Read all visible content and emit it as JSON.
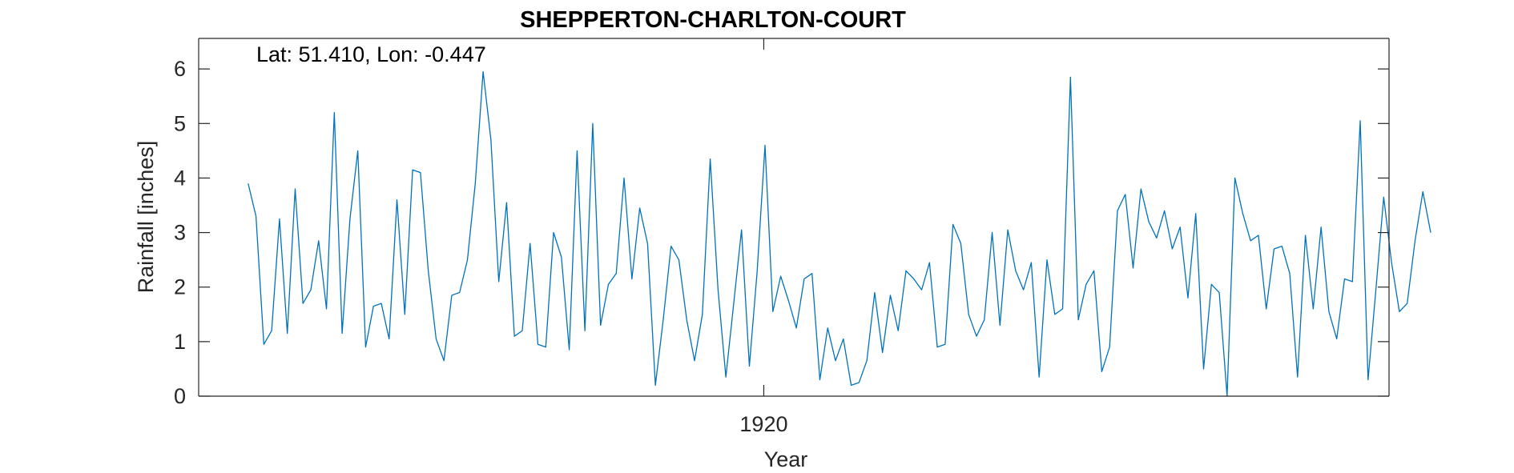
{
  "chart_data": {
    "type": "line",
    "title": "SHEPPERTON-CHARLTON-COURT",
    "annotation": "Lat: 51.410, Lon: -0.447",
    "xlabel": "Year",
    "ylabel": "Rainfall [inches]",
    "xlim": [
      1901.96,
      1939.96
    ],
    "ylim": [
      0,
      6.56
    ],
    "x_ticks": [
      1920
    ],
    "x_tick_labels": [
      "1920"
    ],
    "y_ticks": [
      0,
      1,
      2,
      3,
      4,
      5,
      6
    ],
    "y_tick_labels": [
      "0",
      "1",
      "2",
      "3",
      "4",
      "5",
      "6"
    ],
    "x_start": 1903.54,
    "x_step": 0.25,
    "grid": false,
    "series": [
      {
        "color": "#0072BD",
        "values": [
          3.9,
          3.3,
          0.95,
          1.2,
          3.25,
          1.15,
          3.8,
          1.7,
          1.95,
          2.85,
          1.6,
          5.2,
          1.15,
          3.25,
          4.5,
          0.9,
          1.65,
          1.7,
          1.05,
          3.6,
          1.5,
          4.15,
          4.1,
          2.3,
          1.05,
          0.65,
          1.85,
          1.9,
          2.5,
          3.9,
          5.95,
          4.7,
          2.1,
          3.55,
          1.1,
          1.2,
          2.8,
          0.95,
          0.9,
          3.0,
          2.55,
          0.85,
          4.5,
          1.2,
          5.0,
          1.3,
          2.05,
          2.25,
          4.0,
          2.15,
          3.45,
          2.8,
          0.2,
          1.4,
          2.75,
          2.5,
          1.4,
          0.65,
          1.5,
          4.35,
          1.95,
          0.35,
          1.7,
          3.05,
          0.55,
          2.3,
          4.6,
          1.55,
          2.2,
          1.75,
          1.25,
          2.15,
          2.25,
          0.3,
          1.25,
          0.65,
          1.05,
          0.2,
          0.25,
          0.65,
          1.9,
          0.8,
          1.85,
          1.2,
          2.3,
          2.15,
          1.95,
          2.45,
          0.9,
          0.95,
          3.15,
          2.8,
          1.5,
          1.1,
          1.4,
          3.0,
          1.3,
          3.05,
          2.3,
          1.95,
          2.45,
          0.35,
          2.5,
          1.5,
          1.6,
          5.85,
          1.4,
          2.05,
          2.3,
          0.45,
          0.9,
          3.4,
          3.7,
          2.35,
          3.8,
          3.2,
          2.9,
          3.4,
          2.7,
          3.1,
          1.8,
          3.35,
          0.5,
          2.05,
          1.9,
          0.0,
          4.0,
          3.35,
          2.85,
          2.95,
          1.6,
          2.7,
          2.75,
          2.25,
          0.35,
          2.95,
          1.6,
          3.1,
          1.55,
          1.05,
          2.15,
          2.1,
          5.05,
          0.3,
          1.95,
          3.65,
          2.45,
          1.55,
          1.7,
          2.85,
          3.75,
          3.0
        ]
      }
    ]
  }
}
